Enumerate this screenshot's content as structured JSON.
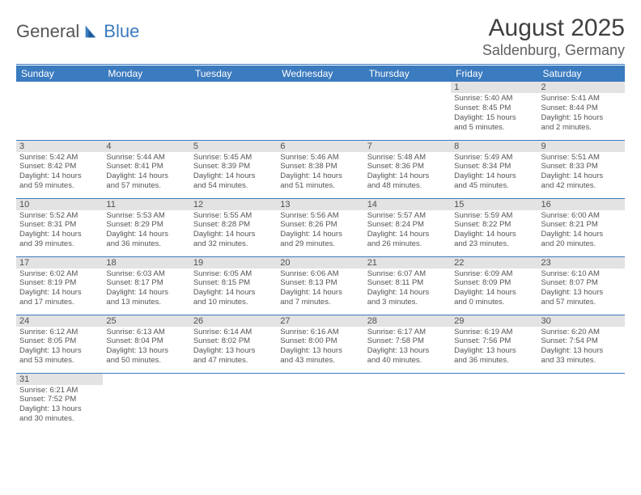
{
  "brand": {
    "name1": "General",
    "name2": "Blue"
  },
  "header": {
    "month": "August 2025",
    "location": "Saldenburg, Germany"
  },
  "colors": {
    "accent": "#3b7bbf",
    "header_text": "#ffffff",
    "daynum_bg": "#e3e3e3",
    "body_text": "#555555"
  },
  "daysOfWeek": [
    "Sunday",
    "Monday",
    "Tuesday",
    "Wednesday",
    "Thursday",
    "Friday",
    "Saturday"
  ],
  "weeks": [
    [
      null,
      null,
      null,
      null,
      null,
      {
        "n": "1",
        "sr": "Sunrise: 5:40 AM",
        "ss": "Sunset: 8:45 PM",
        "dl1": "Daylight: 15 hours",
        "dl2": "and 5 minutes."
      },
      {
        "n": "2",
        "sr": "Sunrise: 5:41 AM",
        "ss": "Sunset: 8:44 PM",
        "dl1": "Daylight: 15 hours",
        "dl2": "and 2 minutes."
      }
    ],
    [
      {
        "n": "3",
        "sr": "Sunrise: 5:42 AM",
        "ss": "Sunset: 8:42 PM",
        "dl1": "Daylight: 14 hours",
        "dl2": "and 59 minutes."
      },
      {
        "n": "4",
        "sr": "Sunrise: 5:44 AM",
        "ss": "Sunset: 8:41 PM",
        "dl1": "Daylight: 14 hours",
        "dl2": "and 57 minutes."
      },
      {
        "n": "5",
        "sr": "Sunrise: 5:45 AM",
        "ss": "Sunset: 8:39 PM",
        "dl1": "Daylight: 14 hours",
        "dl2": "and 54 minutes."
      },
      {
        "n": "6",
        "sr": "Sunrise: 5:46 AM",
        "ss": "Sunset: 8:38 PM",
        "dl1": "Daylight: 14 hours",
        "dl2": "and 51 minutes."
      },
      {
        "n": "7",
        "sr": "Sunrise: 5:48 AM",
        "ss": "Sunset: 8:36 PM",
        "dl1": "Daylight: 14 hours",
        "dl2": "and 48 minutes."
      },
      {
        "n": "8",
        "sr": "Sunrise: 5:49 AM",
        "ss": "Sunset: 8:34 PM",
        "dl1": "Daylight: 14 hours",
        "dl2": "and 45 minutes."
      },
      {
        "n": "9",
        "sr": "Sunrise: 5:51 AM",
        "ss": "Sunset: 8:33 PM",
        "dl1": "Daylight: 14 hours",
        "dl2": "and 42 minutes."
      }
    ],
    [
      {
        "n": "10",
        "sr": "Sunrise: 5:52 AM",
        "ss": "Sunset: 8:31 PM",
        "dl1": "Daylight: 14 hours",
        "dl2": "and 39 minutes."
      },
      {
        "n": "11",
        "sr": "Sunrise: 5:53 AM",
        "ss": "Sunset: 8:29 PM",
        "dl1": "Daylight: 14 hours",
        "dl2": "and 36 minutes."
      },
      {
        "n": "12",
        "sr": "Sunrise: 5:55 AM",
        "ss": "Sunset: 8:28 PM",
        "dl1": "Daylight: 14 hours",
        "dl2": "and 32 minutes."
      },
      {
        "n": "13",
        "sr": "Sunrise: 5:56 AM",
        "ss": "Sunset: 8:26 PM",
        "dl1": "Daylight: 14 hours",
        "dl2": "and 29 minutes."
      },
      {
        "n": "14",
        "sr": "Sunrise: 5:57 AM",
        "ss": "Sunset: 8:24 PM",
        "dl1": "Daylight: 14 hours",
        "dl2": "and 26 minutes."
      },
      {
        "n": "15",
        "sr": "Sunrise: 5:59 AM",
        "ss": "Sunset: 8:22 PM",
        "dl1": "Daylight: 14 hours",
        "dl2": "and 23 minutes."
      },
      {
        "n": "16",
        "sr": "Sunrise: 6:00 AM",
        "ss": "Sunset: 8:21 PM",
        "dl1": "Daylight: 14 hours",
        "dl2": "and 20 minutes."
      }
    ],
    [
      {
        "n": "17",
        "sr": "Sunrise: 6:02 AM",
        "ss": "Sunset: 8:19 PM",
        "dl1": "Daylight: 14 hours",
        "dl2": "and 17 minutes."
      },
      {
        "n": "18",
        "sr": "Sunrise: 6:03 AM",
        "ss": "Sunset: 8:17 PM",
        "dl1": "Daylight: 14 hours",
        "dl2": "and 13 minutes."
      },
      {
        "n": "19",
        "sr": "Sunrise: 6:05 AM",
        "ss": "Sunset: 8:15 PM",
        "dl1": "Daylight: 14 hours",
        "dl2": "and 10 minutes."
      },
      {
        "n": "20",
        "sr": "Sunrise: 6:06 AM",
        "ss": "Sunset: 8:13 PM",
        "dl1": "Daylight: 14 hours",
        "dl2": "and 7 minutes."
      },
      {
        "n": "21",
        "sr": "Sunrise: 6:07 AM",
        "ss": "Sunset: 8:11 PM",
        "dl1": "Daylight: 14 hours",
        "dl2": "and 3 minutes."
      },
      {
        "n": "22",
        "sr": "Sunrise: 6:09 AM",
        "ss": "Sunset: 8:09 PM",
        "dl1": "Daylight: 14 hours",
        "dl2": "and 0 minutes."
      },
      {
        "n": "23",
        "sr": "Sunrise: 6:10 AM",
        "ss": "Sunset: 8:07 PM",
        "dl1": "Daylight: 13 hours",
        "dl2": "and 57 minutes."
      }
    ],
    [
      {
        "n": "24",
        "sr": "Sunrise: 6:12 AM",
        "ss": "Sunset: 8:05 PM",
        "dl1": "Daylight: 13 hours",
        "dl2": "and 53 minutes."
      },
      {
        "n": "25",
        "sr": "Sunrise: 6:13 AM",
        "ss": "Sunset: 8:04 PM",
        "dl1": "Daylight: 13 hours",
        "dl2": "and 50 minutes."
      },
      {
        "n": "26",
        "sr": "Sunrise: 6:14 AM",
        "ss": "Sunset: 8:02 PM",
        "dl1": "Daylight: 13 hours",
        "dl2": "and 47 minutes."
      },
      {
        "n": "27",
        "sr": "Sunrise: 6:16 AM",
        "ss": "Sunset: 8:00 PM",
        "dl1": "Daylight: 13 hours",
        "dl2": "and 43 minutes."
      },
      {
        "n": "28",
        "sr": "Sunrise: 6:17 AM",
        "ss": "Sunset: 7:58 PM",
        "dl1": "Daylight: 13 hours",
        "dl2": "and 40 minutes."
      },
      {
        "n": "29",
        "sr": "Sunrise: 6:19 AM",
        "ss": "Sunset: 7:56 PM",
        "dl1": "Daylight: 13 hours",
        "dl2": "and 36 minutes."
      },
      {
        "n": "30",
        "sr": "Sunrise: 6:20 AM",
        "ss": "Sunset: 7:54 PM",
        "dl1": "Daylight: 13 hours",
        "dl2": "and 33 minutes."
      }
    ],
    [
      {
        "n": "31",
        "sr": "Sunrise: 6:21 AM",
        "ss": "Sunset: 7:52 PM",
        "dl1": "Daylight: 13 hours",
        "dl2": "and 30 minutes."
      },
      null,
      null,
      null,
      null,
      null,
      null
    ]
  ]
}
